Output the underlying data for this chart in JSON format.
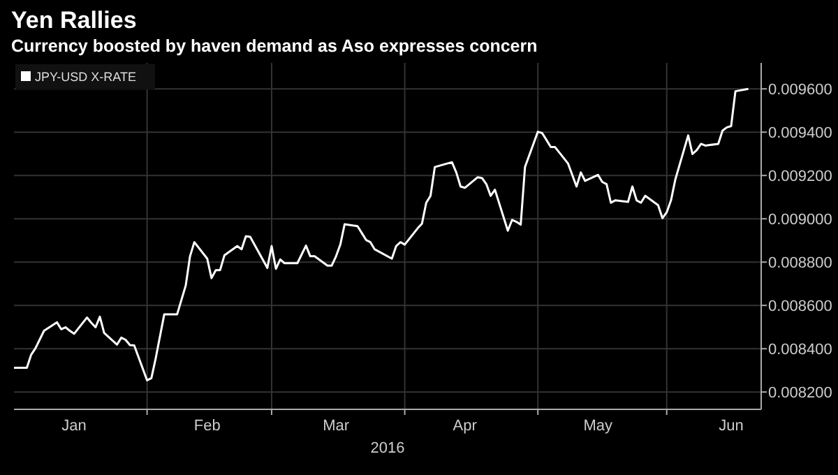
{
  "chart_data": {
    "type": "line",
    "title": "Yen Rallies",
    "subtitle": "Currency boosted by haven demand as Aso expresses concern",
    "xlabel": "2016",
    "x": [
      "2016-01-01",
      "2016-01-04",
      "2016-01-05",
      "2016-01-06",
      "2016-01-08",
      "2016-01-11",
      "2016-01-12",
      "2016-01-13",
      "2016-01-14",
      "2016-01-15",
      "2016-01-18",
      "2016-01-19",
      "2016-01-20",
      "2016-01-21",
      "2016-01-22",
      "2016-01-25",
      "2016-01-26",
      "2016-01-27",
      "2016-01-28",
      "2016-01-29",
      "2016-02-01",
      "2016-02-02",
      "2016-02-03",
      "2016-02-05",
      "2016-02-08",
      "2016-02-10",
      "2016-02-11",
      "2016-02-12",
      "2016-02-15",
      "2016-02-16",
      "2016-02-17",
      "2016-02-18",
      "2016-02-19",
      "2016-02-22",
      "2016-02-23",
      "2016-02-24",
      "2016-02-25",
      "2016-02-29",
      "2016-03-01",
      "2016-03-02",
      "2016-03-03",
      "2016-03-04",
      "2016-03-07",
      "2016-03-09",
      "2016-03-10",
      "2016-03-11",
      "2016-03-14",
      "2016-03-15",
      "2016-03-16",
      "2016-03-17",
      "2016-03-18",
      "2016-03-21",
      "2016-03-22",
      "2016-03-23",
      "2016-03-24",
      "2016-03-25",
      "2016-03-29",
      "2016-03-30",
      "2016-03-31",
      "2016-04-01",
      "2016-04-04",
      "2016-04-05",
      "2016-04-06",
      "2016-04-07",
      "2016-04-08",
      "2016-04-11",
      "2016-04-12",
      "2016-04-13",
      "2016-04-14",
      "2016-04-15",
      "2016-04-18",
      "2016-04-19",
      "2016-04-20",
      "2016-04-21",
      "2016-04-22",
      "2016-04-25",
      "2016-04-26",
      "2016-04-27",
      "2016-04-28",
      "2016-04-29",
      "2016-05-02",
      "2016-05-03",
      "2016-05-04",
      "2016-05-05",
      "2016-05-06",
      "2016-05-09",
      "2016-05-10",
      "2016-05-11",
      "2016-05-12",
      "2016-05-13",
      "2016-05-16",
      "2016-05-17",
      "2016-05-18",
      "2016-05-19",
      "2016-05-20",
      "2016-05-23",
      "2016-05-24",
      "2016-05-25",
      "2016-05-26",
      "2016-05-27",
      "2016-05-30",
      "2016-05-31",
      "2016-06-01",
      "2016-06-02",
      "2016-06-03",
      "2016-06-06",
      "2016-06-07",
      "2016-06-08",
      "2016-06-09",
      "2016-06-10",
      "2016-06-13",
      "2016-06-14",
      "2016-06-15",
      "2016-06-16",
      "2016-06-17",
      "2016-06-20"
    ],
    "series": [
      {
        "name": "JPY-USD X-RATE",
        "color": "#ffffff",
        "values": [
          0.008312,
          0.008312,
          0.008372,
          0.008402,
          0.008483,
          0.008522,
          0.00849,
          0.008499,
          0.008483,
          0.008469,
          0.008544,
          0.00852,
          0.008499,
          0.008548,
          0.008473,
          0.008419,
          0.008451,
          0.008441,
          0.008417,
          0.008415,
          0.008254,
          0.008264,
          0.008355,
          0.008559,
          0.008559,
          0.008692,
          0.008827,
          0.008892,
          0.008816,
          0.008726,
          0.008763,
          0.008763,
          0.008831,
          0.008874,
          0.008859,
          0.008919,
          0.008917,
          0.008773,
          0.008874,
          0.008769,
          0.008812,
          0.008795,
          0.008795,
          0.008876,
          0.008827,
          0.008827,
          0.008784,
          0.008784,
          0.008827,
          0.008881,
          0.008975,
          0.008966,
          0.008934,
          0.008902,
          0.008892,
          0.008859,
          0.008816,
          0.008874,
          0.008892,
          0.008881,
          0.008956,
          0.008977,
          0.009074,
          0.009106,
          0.009239,
          0.009256,
          0.009261,
          0.009214,
          0.009149,
          0.009143,
          0.009192,
          0.009188,
          0.00916,
          0.009106,
          0.009134,
          0.008945,
          0.008995,
          0.008986,
          0.008973,
          0.009239,
          0.009402,
          0.009396,
          0.009364,
          0.009331,
          0.009331,
          0.009256,
          0.009203,
          0.009149,
          0.009214,
          0.009175,
          0.009203,
          0.00917,
          0.00916,
          0.009074,
          0.009085,
          0.009078,
          0.009149,
          0.009085,
          0.009074,
          0.009106,
          0.009063,
          0.009003,
          0.00903,
          0.009085,
          0.009181,
          0.009385,
          0.009299,
          0.009317,
          0.009346,
          0.009338,
          0.009346,
          0.009407,
          0.009422,
          0.009428,
          0.009589,
          0.0096
        ]
      }
    ],
    "xlim": [
      "2016-01-01",
      "2016-06-23"
    ],
    "xticks": [
      {
        "value": "2016-01-15",
        "label": "Jan"
      },
      {
        "value": "2016-02-01",
        "label": null
      },
      {
        "value": "2016-02-15",
        "label": "Feb"
      },
      {
        "value": "2016-03-01",
        "label": null
      },
      {
        "value": "2016-03-16",
        "label": "Mar"
      },
      {
        "value": "2016-04-01",
        "label": null
      },
      {
        "value": "2016-04-15",
        "label": "Apr"
      },
      {
        "value": "2016-05-02",
        "label": null
      },
      {
        "value": "2016-05-16",
        "label": "May"
      },
      {
        "value": "2016-06-01",
        "label": null
      },
      {
        "value": "2016-06-16",
        "label": "Jun"
      }
    ],
    "ylim": [
      0.00812,
      0.00972
    ],
    "yticks": [
      {
        "value": 0.0082,
        "label": "0.008200"
      },
      {
        "value": 0.0084,
        "label": "0.008400"
      },
      {
        "value": 0.0086,
        "label": "0.008600"
      },
      {
        "value": 0.0088,
        "label": "0.008800"
      },
      {
        "value": 0.009,
        "label": "0.009000"
      },
      {
        "value": 0.0092,
        "label": "0.009200"
      },
      {
        "value": 0.0094,
        "label": "0.009400"
      },
      {
        "value": 0.0096,
        "label": "0.009600"
      }
    ],
    "grid": true,
    "legend": "top left"
  }
}
